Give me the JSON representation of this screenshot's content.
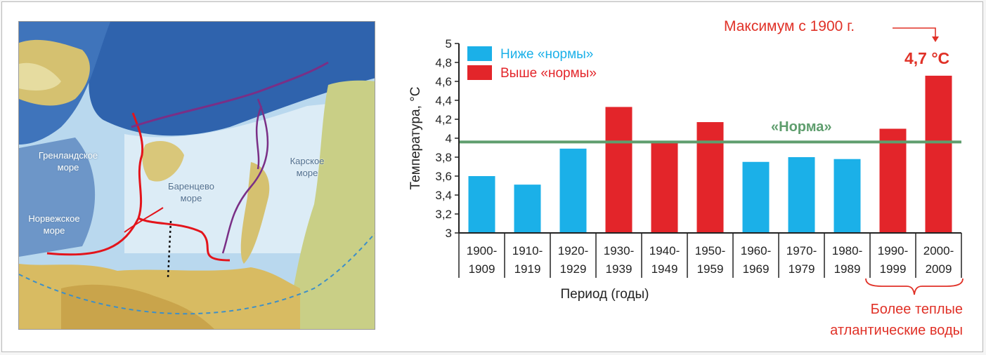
{
  "map": {
    "labels": [
      {
        "id": "greenland-sea",
        "text": "Гренландское\nморе"
      },
      {
        "id": "norwegian-sea",
        "text": "Норвежское\nморе"
      },
      {
        "id": "barents-sea",
        "text": "Баренцево\nморе"
      },
      {
        "id": "kara-sea",
        "text": "Карское\nморе"
      }
    ],
    "colors": {
      "deep_water": "#2f63ad",
      "sea": "#b9d8ee",
      "shelf": "#dcecf6",
      "land": "#d5c170",
      "atlantic_current": "#e3141b",
      "arctic_current": "#7a2f86"
    }
  },
  "annotations": {
    "max_note": "Максимум с 1900 г.",
    "max_value": "4,7 °С",
    "norm_label": "«Норма»",
    "bottom_note_line1": "Более теплые",
    "bottom_note_line2": "атлантические воды"
  },
  "chart_data": {
    "type": "bar",
    "xlabel": "Период (годы)",
    "ylabel": "Температура, °С",
    "ylim": [
      3,
      5
    ],
    "y_ticks": [
      "3",
      "3,2",
      "3,4",
      "3,6",
      "3,8",
      "4",
      "4,2",
      "4,4",
      "4,6",
      "4,8",
      "5"
    ],
    "y_tick_values": [
      3,
      3.2,
      3.4,
      3.6,
      3.8,
      4,
      4.2,
      4.4,
      4.6,
      4.8,
      5
    ],
    "categories": [
      [
        "1900-",
        "1909"
      ],
      [
        "1910-",
        "1919"
      ],
      [
        "1920-",
        "1929"
      ],
      [
        "1930-",
        "1939"
      ],
      [
        "1940-",
        "1949"
      ],
      [
        "1950-",
        "1959"
      ],
      [
        "1960-",
        "1969"
      ],
      [
        "1970-",
        "1979"
      ],
      [
        "1980-",
        "1989"
      ],
      [
        "1990-",
        "1999"
      ],
      [
        "2000-",
        "2009"
      ]
    ],
    "values": [
      3.6,
      3.51,
      3.89,
      4.33,
      3.96,
      4.17,
      3.75,
      3.8,
      3.78,
      4.1,
      4.66
    ],
    "norm": 3.96,
    "legend": [
      {
        "label": "Ниже «нормы»",
        "color": "#1bb0e8"
      },
      {
        "label": "Выше «нормы»",
        "color": "#e3252a"
      }
    ],
    "legend_position": "top-left",
    "colors": {
      "below": "#1bb0e8",
      "above": "#e3252a",
      "norm_line": "#5f9e6e"
    }
  }
}
